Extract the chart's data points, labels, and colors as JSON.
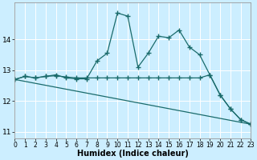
{
  "xlabel": "Humidex (Indice chaleur)",
  "bg_color": "#cceeff",
  "line_color": "#1a6b6b",
  "grid_color": "#ffffff",
  "series": [
    {
      "x": [
        0,
        1,
        2,
        3,
        4,
        5,
        6,
        7,
        8,
        9,
        10,
        11,
        12,
        13,
        14,
        15,
        16,
        17,
        18,
        19,
        20,
        21,
        22,
        23
      ],
      "y": [
        12.7,
        12.8,
        12.75,
        12.8,
        12.85,
        12.75,
        12.72,
        12.72,
        13.3,
        13.55,
        14.85,
        14.75,
        13.1,
        13.55,
        14.1,
        14.05,
        14.3,
        13.75,
        13.5,
        12.85,
        12.2,
        11.75,
        11.4,
        11.25
      ]
    },
    {
      "x": [
        0,
        1,
        2,
        3,
        4,
        5,
        6,
        7,
        8,
        9,
        10,
        11,
        12,
        13,
        14,
        15,
        16,
        17,
        18,
        19,
        20,
        21,
        22,
        23
      ],
      "y": [
        12.7,
        12.8,
        12.75,
        12.8,
        12.82,
        12.78,
        12.75,
        12.75,
        12.75,
        12.75,
        12.75,
        12.75,
        12.75,
        12.75,
        12.75,
        12.75,
        12.75,
        12.75,
        12.75,
        12.85,
        12.2,
        11.75,
        11.4,
        11.25
      ]
    },
    {
      "x": [
        0,
        23
      ],
      "y": [
        12.7,
        11.25
      ]
    }
  ],
  "xlim": [
    0,
    23
  ],
  "ylim": [
    10.8,
    15.2
  ],
  "yticks": [
    11,
    12,
    13,
    14
  ],
  "xticks": [
    0,
    1,
    2,
    3,
    4,
    5,
    6,
    7,
    8,
    9,
    10,
    11,
    12,
    13,
    14,
    15,
    16,
    17,
    18,
    19,
    20,
    21,
    22,
    23
  ],
  "marker": "+",
  "markersize": 4,
  "markeredgewidth": 1.0,
  "linewidth": 0.9,
  "xlabel_fontsize": 7,
  "tick_fontsize": 5.5
}
